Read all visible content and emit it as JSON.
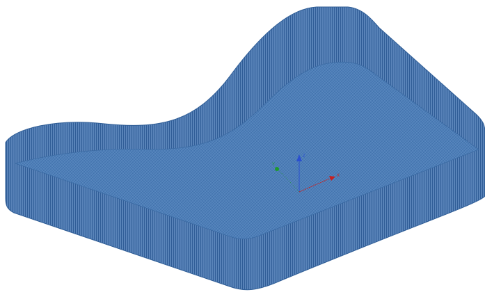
{
  "axis_labels": {
    "x": "X",
    "y": "Y",
    "z": "Z"
  }
}
